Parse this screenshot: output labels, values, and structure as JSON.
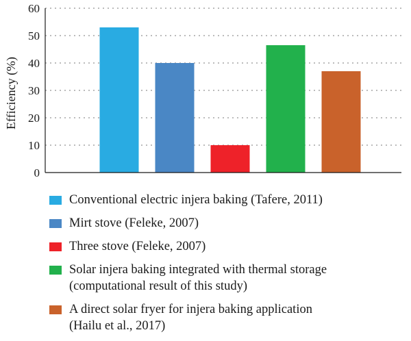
{
  "chart_data": {
    "type": "bar",
    "title": "",
    "xlabel": "",
    "ylabel": "Efficiency (%)",
    "ylim": [
      0,
      60
    ],
    "yticks": [
      0,
      10,
      20,
      30,
      40,
      50,
      60
    ],
    "grid": "horizontal dotted",
    "legend_position": "bottom",
    "categories": [
      "Conventional electric injera baking (Tafere, 2011)",
      "Mirt stove (Feleke, 2007)",
      "Three stove (Feleke, 2007)",
      "Solar injera baking integrated with thermal storage\n(computational result of this study)",
      "A direct solar fryer for injera baking application\n(Hailu et al., 2017)"
    ],
    "values": [
      53,
      40,
      10,
      46.5,
      37
    ],
    "colors": [
      "#29abe2",
      "#4a87c5",
      "#ee2229",
      "#22b14c",
      "#c9622b"
    ]
  }
}
